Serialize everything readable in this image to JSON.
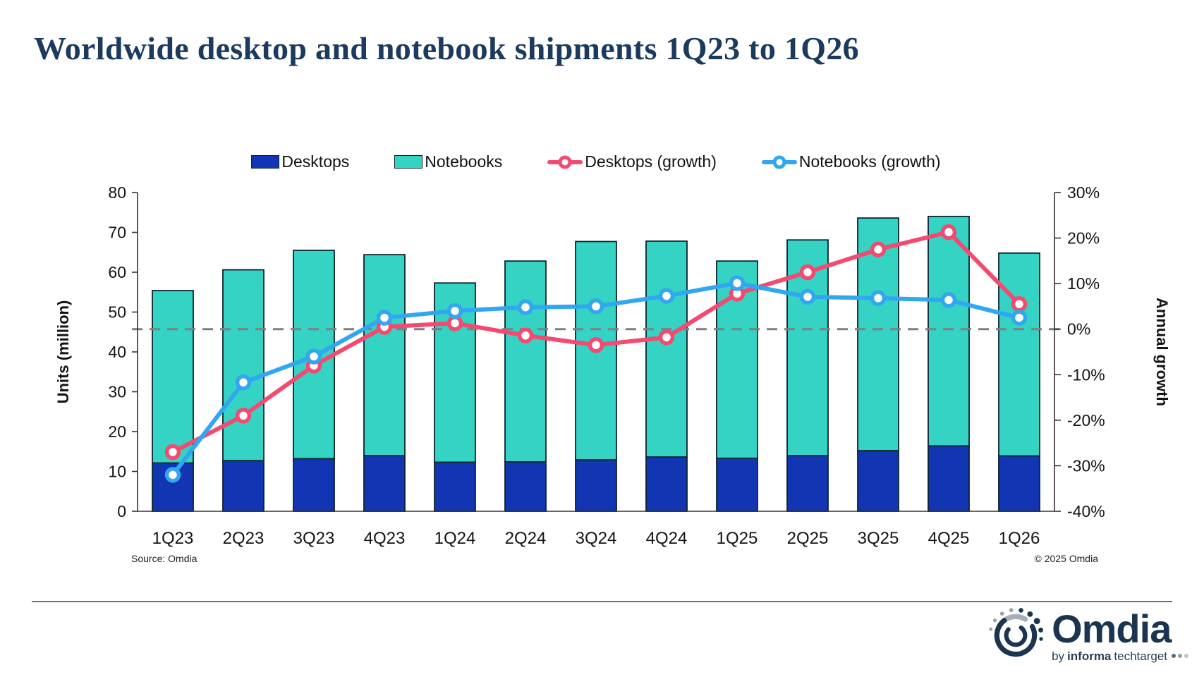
{
  "title": "Worldwide desktop and notebook shipments 1Q23 to 1Q26",
  "footer": {
    "source": "Source: Omdia",
    "copyright": "© 2025 Omdia"
  },
  "logo": {
    "brand": "Omdia",
    "tagline_by": "by",
    "tagline_informa": "informa",
    "tagline_techtarget": "techtarget"
  },
  "colors": {
    "title_text": "#1b3a5e",
    "axis_line": "#333333",
    "bar_outline": "#0d2430",
    "zero_line": "#7f7f7f",
    "desktops_bar": "#1235b4",
    "notebooks_bar": "#35d3c3",
    "desktops_growth_line": "#f24a71",
    "notebooks_growth_line": "#31a7f0"
  },
  "chart_data": {
    "type": "combo: stacked bar + line",
    "categories": [
      "1Q23",
      "2Q23",
      "3Q23",
      "4Q23",
      "1Q24",
      "2Q24",
      "3Q24",
      "4Q24",
      "1Q25",
      "2Q25",
      "3Q25",
      "4Q25",
      "1Q26"
    ],
    "bar_series": [
      {
        "name": "Desktops",
        "color": "#1235b4",
        "values": [
          12.1,
          12.7,
          13.2,
          14.0,
          12.3,
          12.4,
          12.9,
          13.6,
          13.3,
          14.0,
          15.2,
          16.4,
          13.9
        ]
      },
      {
        "name": "Notebooks",
        "color": "#35d3c3",
        "values": [
          43.3,
          47.9,
          52.3,
          50.4,
          45.0,
          50.4,
          54.8,
          54.2,
          49.5,
          54.1,
          58.4,
          57.6,
          50.9
        ]
      }
    ],
    "line_series": [
      {
        "name": "Desktops (growth)",
        "color": "#f24a71",
        "values": [
          -27.0,
          -19.0,
          -8.0,
          0.5,
          1.3,
          -1.4,
          -3.5,
          -1.8,
          7.8,
          12.5,
          17.5,
          21.3,
          5.5
        ]
      },
      {
        "name": "Notebooks (growth)",
        "color": "#31a7f0",
        "values": [
          -32.0,
          -11.7,
          -6.0,
          2.5,
          4.0,
          4.8,
          5.0,
          7.3,
          10.1,
          7.1,
          6.8,
          6.4,
          2.5
        ]
      }
    ],
    "left_axis": {
      "label": "Units (million)",
      "min": 0,
      "max": 80,
      "step": 10
    },
    "right_axis": {
      "label": "Annual growth",
      "min": -40,
      "max": 30,
      "step": 10,
      "suffix": "%"
    },
    "zero_line": true,
    "grid": false,
    "legend_position": "top"
  }
}
